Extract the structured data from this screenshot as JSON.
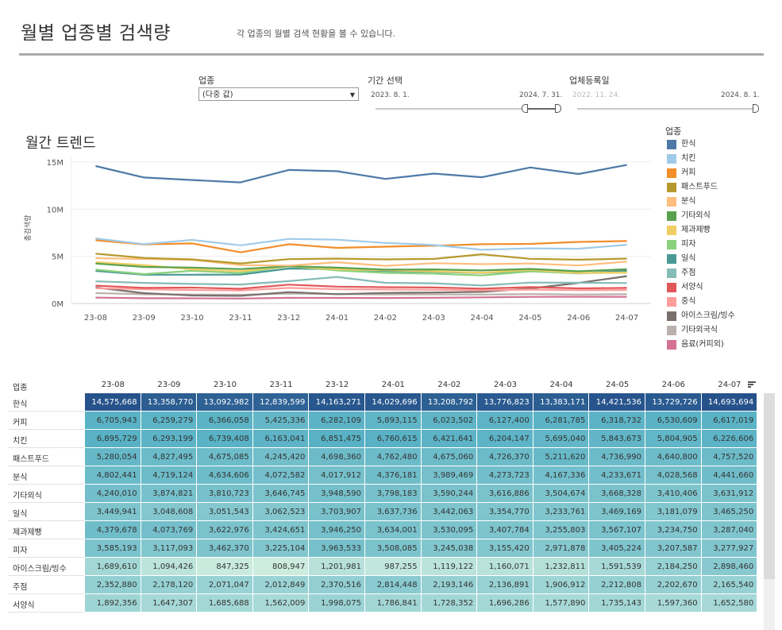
{
  "header": {
    "title": "월별 업종별 검색량",
    "subtitle": "각 업종의 월별 검색 현황을 볼 수 있습니다."
  },
  "filters": {
    "industry_label": "업종",
    "industry_value": "(다중 값)",
    "period_label": "기간 선택",
    "period_start": "2023. 8. 1.",
    "period_end": "2024. 7. 31.",
    "registration_label": "업체등록일",
    "registration_start": "2022. 11. 24.",
    "registration_end": "2024. 8. 1."
  },
  "colors": {
    "한식": "#4e79a7",
    "치킨": "#a0cbe8",
    "커피": "#f28e2b",
    "패스트푸드": "#b6992d",
    "분식": "#ffbe7d",
    "기타외식": "#59a14f",
    "제과제빵": "#f1ce63",
    "피자": "#8cd17d",
    "일식": "#499894",
    "주점": "#86bcb6",
    "서양식": "#e15759",
    "중식": "#ff9d9a",
    "아이스크림/빙수": "#79706e",
    "기타외국식": "#bab0ac",
    "음료(커피외)": "#d37295"
  },
  "chart_data": {
    "type": "line",
    "title": "월간 트렌드",
    "xlabel": "",
    "ylabel": "총검색량",
    "ylim": [
      0,
      15500000
    ],
    "y_ticks": [
      0,
      5000000,
      10000000,
      15000000
    ],
    "y_tick_labels": [
      "0M",
      "5M",
      "10M",
      "15M"
    ],
    "grid": true,
    "legend_position": "right",
    "legend_title": "업종",
    "categories": [
      "23-08",
      "23-09",
      "23-10",
      "23-11",
      "23-12",
      "24-01",
      "24-02",
      "24-03",
      "24-04",
      "24-05",
      "24-06",
      "24-07"
    ],
    "series": [
      {
        "name": "한식",
        "values": [
          14575668,
          13358770,
          13092982,
          12839599,
          14163271,
          14029696,
          13208792,
          13776823,
          13383171,
          14421536,
          13729726,
          14693694
        ]
      },
      {
        "name": "치킨",
        "values": [
          6895729,
          6293199,
          6739408,
          6163041,
          6851475,
          6760615,
          6421641,
          6204147,
          5695040,
          5843673,
          5804905,
          6226606
        ]
      },
      {
        "name": "커피",
        "values": [
          6705943,
          6259279,
          6366058,
          5425336,
          6282109,
          5893115,
          6023502,
          6127400,
          6281785,
          6318732,
          6530609,
          6617019
        ]
      },
      {
        "name": "패스트푸드",
        "values": [
          5280054,
          4827495,
          4675085,
          4245420,
          4698360,
          4762480,
          4675060,
          4726370,
          5211620,
          4736990,
          4640800,
          4757520
        ]
      },
      {
        "name": "분식",
        "values": [
          4802441,
          4719124,
          4634606,
          4072582,
          4017912,
          4376181,
          3989469,
          4273723,
          4167336,
          4233671,
          4028568,
          4441660
        ]
      },
      {
        "name": "기타외식",
        "values": [
          4240010,
          3874821,
          3810723,
          3646745,
          3948590,
          3798183,
          3590244,
          3616886,
          3504674,
          3668328,
          3410406,
          3631912
        ]
      },
      {
        "name": "제과제빵",
        "values": [
          4379678,
          4073769,
          3622976,
          3424651,
          3946250,
          3634001,
          3530095,
          3407784,
          3255803,
          3567107,
          3234750,
          3287040
        ]
      },
      {
        "name": "피자",
        "values": [
          3585193,
          3117093,
          3462370,
          3225104,
          3963533,
          3508085,
          3245038,
          3155420,
          2971878,
          3405224,
          3207587,
          3277927
        ]
      },
      {
        "name": "일식",
        "values": [
          3449941,
          3048608,
          3051543,
          3062523,
          3703907,
          3637736,
          3442063,
          3354770,
          3233761,
          3469169,
          3181079,
          3465250
        ]
      },
      {
        "name": "주점",
        "values": [
          2352880,
          2178120,
          2071047,
          2012849,
          2370516,
          2814448,
          2193146,
          2136891,
          1906912,
          2212808,
          2202670,
          2165540
        ]
      },
      {
        "name": "서양식",
        "values": [
          1892356,
          1647307,
          1685688,
          1562009,
          1998075,
          1786841,
          1728352,
          1696286,
          1577890,
          1735143,
          1597360,
          1652580
        ]
      },
      {
        "name": "중식",
        "values": [
          1620000,
          1500000,
          1420000,
          1380000,
          1650000,
          1520000,
          1480000,
          1450000,
          1400000,
          1470000,
          1410000,
          1430000
        ]
      },
      {
        "name": "아이스크림/빙수",
        "values": [
          1689610,
          1094426,
          847325,
          808947,
          1201981,
          987255,
          1119122,
          1160071,
          1232811,
          1591539,
          2184250,
          2898460
        ]
      },
      {
        "name": "기타외국식",
        "values": [
          1100000,
          980000,
          950000,
          930000,
          1050000,
          1000000,
          960000,
          970000,
          940000,
          990000,
          950000,
          980000
        ]
      },
      {
        "name": "음료(커피외)",
        "values": [
          620000,
          560000,
          550000,
          520000,
          600000,
          590000,
          580000,
          610000,
          650000,
          700000,
          720000,
          700000
        ]
      }
    ]
  },
  "table": {
    "row_header": "업종",
    "columns": [
      "23-08",
      "23-09",
      "23-10",
      "23-11",
      "23-12",
      "24-01",
      "24-02",
      "24-03",
      "24-04",
      "24-05",
      "24-06",
      "24-07"
    ],
    "rows": [
      {
        "label": "한식",
        "cells": [
          "14,575,668",
          "13,358,770",
          "13,092,982",
          "12,839,599",
          "14,163,271",
          "14,029,696",
          "13,208,792",
          "13,776,823",
          "13,383,171",
          "14,421,536",
          "13,729,726",
          "14,693,694"
        ]
      },
      {
        "label": "커피",
        "cells": [
          "6,705,943",
          "6,259,279",
          "6,366,058",
          "5,425,336",
          "6,282,109",
          "5,893,115",
          "6,023,502",
          "6,127,400",
          "6,281,785",
          "6,318,732",
          "6,530,609",
          "6,617,019"
        ]
      },
      {
        "label": "치킨",
        "cells": [
          "6,895,729",
          "6,293,199",
          "6,739,408",
          "6,163,041",
          "6,851,475",
          "6,760,615",
          "6,421,641",
          "6,204,147",
          "5,695,040",
          "5,843,673",
          "5,804,905",
          "6,226,606"
        ]
      },
      {
        "label": "패스트푸드",
        "cells": [
          "5,280,054",
          "4,827,495",
          "4,675,085",
          "4,245,420",
          "4,698,360",
          "4,762,480",
          "4,675,060",
          "4,726,370",
          "5,211,620",
          "4,736,990",
          "4,640,800",
          "4,757,520"
        ]
      },
      {
        "label": "분식",
        "cells": [
          "4,802,441",
          "4,719,124",
          "4,634,606",
          "4,072,582",
          "4,017,912",
          "4,376,181",
          "3,989,469",
          "4,273,723",
          "4,167,336",
          "4,233,671",
          "4,028,568",
          "4,441,660"
        ]
      },
      {
        "label": "기타외식",
        "cells": [
          "4,240,010",
          "3,874,821",
          "3,810,723",
          "3,646,745",
          "3,948,590",
          "3,798,183",
          "3,590,244",
          "3,616,886",
          "3,504,674",
          "3,668,328",
          "3,410,406",
          "3,631,912"
        ]
      },
      {
        "label": "일식",
        "cells": [
          "3,449,941",
          "3,048,608",
          "3,051,543",
          "3,062,523",
          "3,703,907",
          "3,637,736",
          "3,442,063",
          "3,354,770",
          "3,233,761",
          "3,469,169",
          "3,181,079",
          "3,465,250"
        ]
      },
      {
        "label": "제과제빵",
        "cells": [
          "4,379,678",
          "4,073,769",
          "3,622,976",
          "3,424,651",
          "3,946,250",
          "3,634,001",
          "3,530,095",
          "3,407,784",
          "3,255,803",
          "3,567,107",
          "3,234,750",
          "3,287,040"
        ]
      },
      {
        "label": "피자",
        "cells": [
          "3,585,193",
          "3,117,093",
          "3,462,370",
          "3,225,104",
          "3,963,533",
          "3,508,085",
          "3,245,038",
          "3,155,420",
          "2,971,878",
          "3,405,224",
          "3,207,587",
          "3,277,927"
        ]
      },
      {
        "label": "아이스크림/빙수",
        "cells": [
          "1,689,610",
          "1,094,426",
          "847,325",
          "808,947",
          "1,201,981",
          "987,255",
          "1,119,122",
          "1,160,071",
          "1,232,811",
          "1,591,539",
          "2,184,250",
          "2,898,460"
        ]
      },
      {
        "label": "주점",
        "cells": [
          "2,352,880",
          "2,178,120",
          "2,071,047",
          "2,012,849",
          "2,370,516",
          "2,814,448",
          "2,193,146",
          "2,136,891",
          "1,906,912",
          "2,212,808",
          "2,202,670",
          "2,165,540"
        ]
      },
      {
        "label": "서양식",
        "cells": [
          "1,892,356",
          "1,647,307",
          "1,685,688",
          "1,562,009",
          "1,998,075",
          "1,786,841",
          "1,728,352",
          "1,696,286",
          "1,577,890",
          "1,735,143",
          "1,597,360",
          "1,652,580"
        ]
      }
    ]
  }
}
